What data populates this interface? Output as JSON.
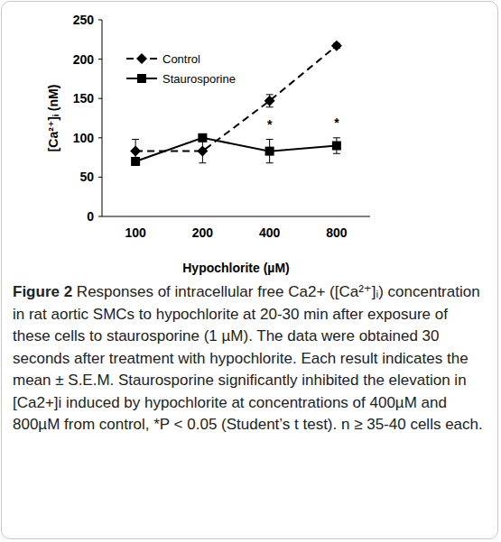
{
  "chart_data": {
    "type": "line",
    "title": "Figure 2",
    "caption": "Responses of intracellular free Ca2+ ([Ca²⁺]ᵢ) concentration in rat aortic SMCs to hypochlorite at 20-30 min after exposure of these cells to staurosporine (1 µM). The data were obtained 30 seconds after treatment with hypochlorite. Each result indicates the mean ± S.E.M. Staurosporine significantly inhibited the elevation in [Ca2+]i induced by hypochlorite at concentrations of 400µM and 800µM from control, *P < 0.05 (Student’s t test). n ≥ 35-40 cells each.",
    "x_label": "Hypochlorite (µM)",
    "y_label": "[Ca²⁺]ᵢ (nM)",
    "categories": [
      "100",
      "200",
      "400",
      "800"
    ],
    "series": [
      {
        "name": "Control",
        "color": "#000000",
        "marker": "diamond",
        "line_style": "dashed",
        "values": [
          83,
          83,
          147,
          217
        ],
        "errors": [
          15,
          15,
          8,
          3
        ]
      },
      {
        "name": "Staurosporine",
        "color": "#000000",
        "marker": "square",
        "line_style": "solid",
        "values": [
          70,
          100,
          83,
          90
        ],
        "errors": [
          5,
          3,
          15,
          10
        ]
      }
    ],
    "significance": [
      null,
      null,
      "*",
      "*"
    ],
    "ylim": [
      0,
      250
    ],
    "yticks": [
      0,
      50,
      100,
      150,
      200,
      250
    ],
    "grid": false,
    "legend": "top-left"
  }
}
